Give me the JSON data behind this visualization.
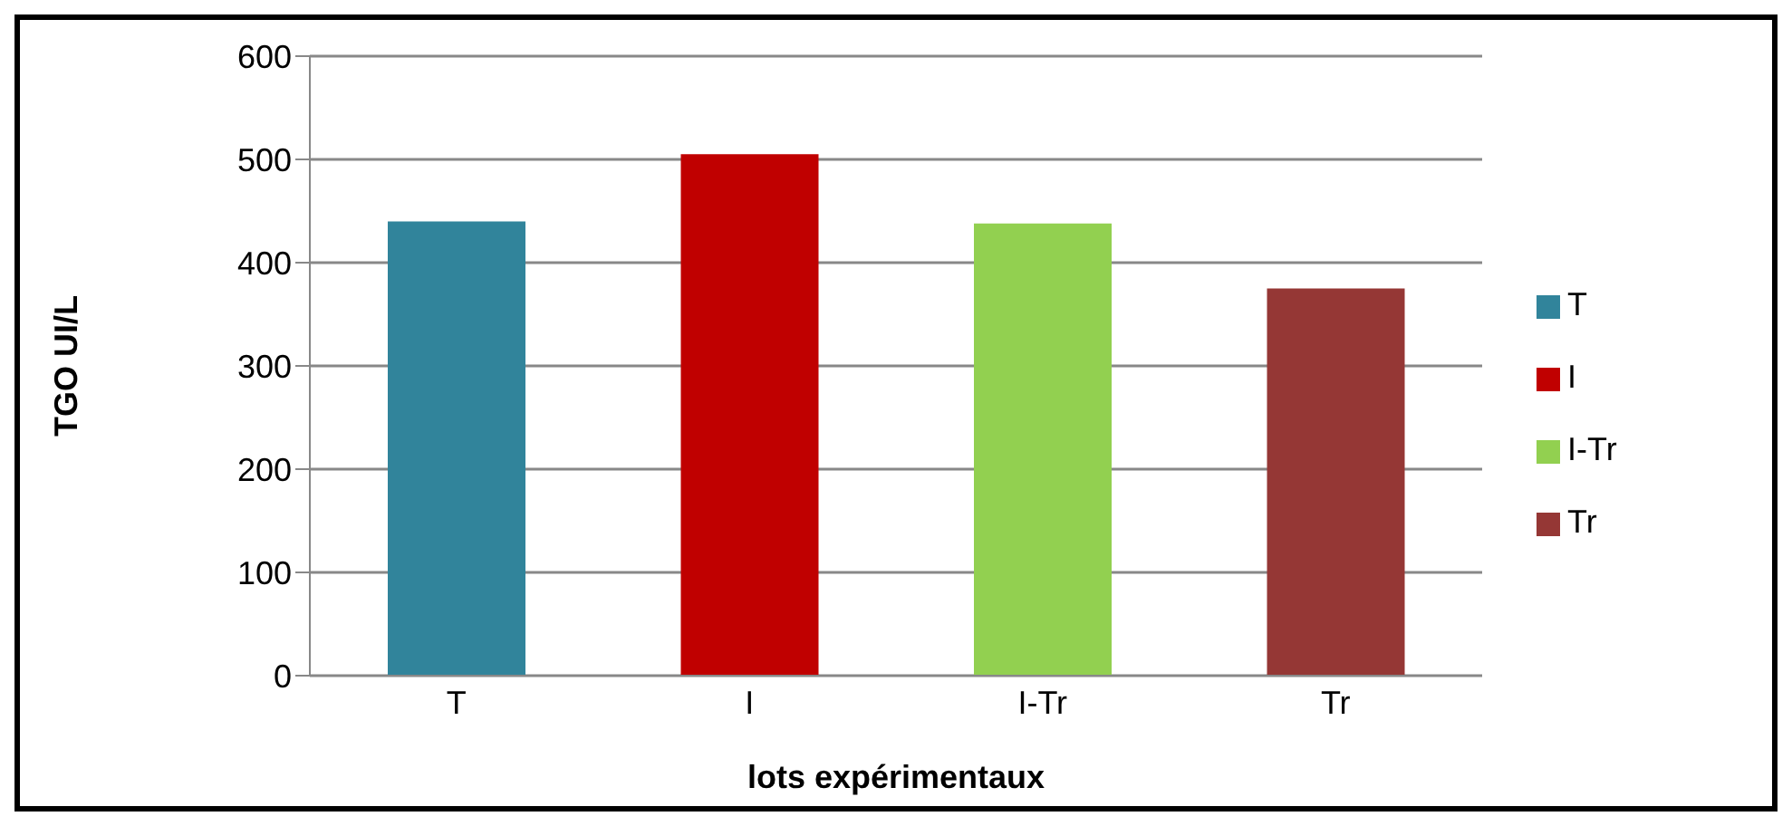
{
  "chart_data": {
    "type": "bar",
    "xlabel": "lots expérimentaux",
    "ylabel": "TGO UI/L",
    "categories": [
      "T",
      "I",
      "I-Tr",
      "Tr"
    ],
    "series": [
      {
        "name": "T",
        "color": "#31849b",
        "values": [
          440,
          null,
          null,
          null
        ]
      },
      {
        "name": "I",
        "color": "#c00000",
        "values": [
          null,
          505,
          null,
          null
        ]
      },
      {
        "name": "I-Tr",
        "color": "#92d050",
        "values": [
          null,
          null,
          438,
          null
        ]
      },
      {
        "name": "Tr",
        "color": "#953735",
        "values": [
          null,
          null,
          null,
          375
        ]
      }
    ],
    "stacked": true,
    "ylim": [
      0,
      600
    ],
    "yticks": [
      0,
      100,
      200,
      300,
      400,
      500,
      600
    ],
    "grid": "y",
    "legend": "right"
  }
}
